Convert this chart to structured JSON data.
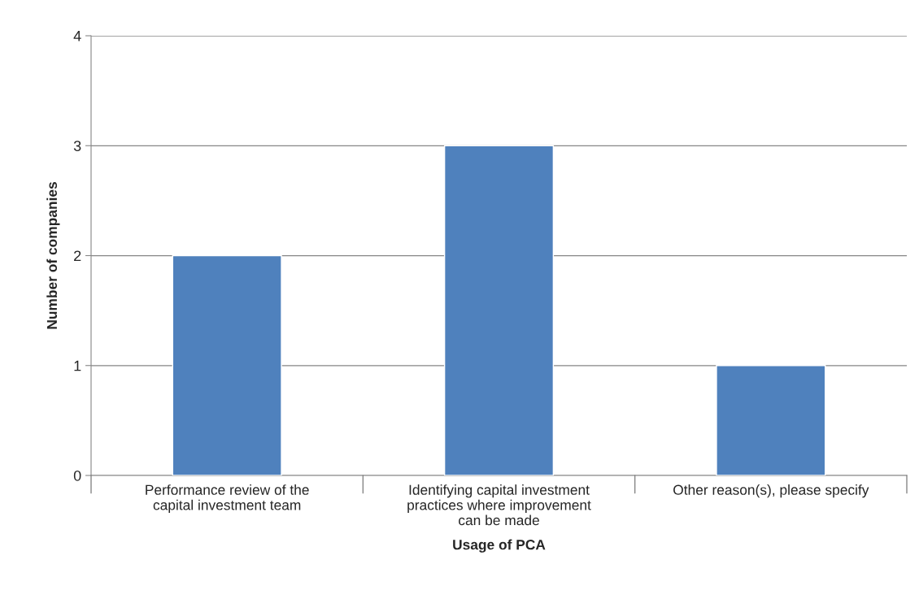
{
  "chart_data": {
    "type": "bar",
    "xlabel": "Usage of PCA",
    "ylabel": "Number of companies",
    "categories": [
      "Performance review of the\ncapital investment team",
      "Identifying capital investment\npractices where improvement\ncan be made",
      "Other reason(s), please specify"
    ],
    "values": [
      2,
      3,
      1
    ],
    "color": "#4f81bd",
    "ylim": [
      0,
      4
    ],
    "yticks": [
      0,
      1,
      2,
      3,
      4
    ],
    "grid": "y"
  }
}
